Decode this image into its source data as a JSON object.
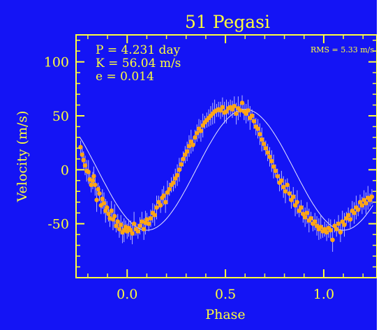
{
  "chart_data": {
    "type": "scatter",
    "title": "51 Pegasi",
    "xlabel": "Phase",
    "ylabel": "Velocity  (m/s)",
    "xlim": [
      -0.26,
      1.27
    ],
    "ylim": [
      -100,
      125
    ],
    "xticks": [
      0.0,
      0.5,
      1.0
    ],
    "xtick_labels": [
      "0.0",
      "0.5",
      "1.0"
    ],
    "yticks": [
      -50,
      0,
      50,
      100
    ],
    "ytick_labels": [
      "-50",
      "0",
      "50",
      "100"
    ],
    "annotations": {
      "period": "P = 4.231 day",
      "amplitude": "K = 56.04 m/s",
      "eccentricity": "e = 0.014",
      "rms": "RMS = 5.33 m/s"
    },
    "model": {
      "name": "Keplerian orbit fit",
      "period_days": 4.231,
      "K": 56.04,
      "e": 0.014,
      "peak_phase": 0.6,
      "phase_range": [
        -0.24,
        1.25
      ]
    },
    "series": [
      {
        "marker": "filled circle with error bar",
        "points": [
          [
            -0.237,
            21
          ],
          [
            -0.229,
            14
          ],
          [
            -0.222,
            9
          ],
          [
            -0.214,
            4
          ],
          [
            -0.206,
            -1
          ],
          [
            -0.197,
            -2
          ],
          [
            -0.19,
            -9
          ],
          [
            -0.183,
            -14
          ],
          [
            -0.175,
            -10
          ],
          [
            -0.17,
            -6
          ],
          [
            -0.163,
            -14
          ],
          [
            -0.155,
            -28
          ],
          [
            -0.148,
            -18
          ],
          [
            -0.141,
            -22
          ],
          [
            -0.133,
            -33
          ],
          [
            -0.126,
            -27
          ],
          [
            -0.118,
            -31
          ],
          [
            -0.11,
            -38
          ],
          [
            -0.103,
            -35
          ],
          [
            -0.095,
            -41
          ],
          [
            -0.088,
            -45
          ],
          [
            -0.08,
            -38
          ],
          [
            -0.072,
            -46
          ],
          [
            -0.064,
            -43
          ],
          [
            -0.056,
            -52
          ],
          [
            -0.048,
            -48
          ],
          [
            -0.04,
            -55
          ],
          [
            -0.032,
            -51
          ],
          [
            -0.024,
            -58
          ],
          [
            -0.016,
            -56
          ],
          [
            -0.008,
            -53
          ],
          [
            0.0,
            -57
          ],
          [
            0.008,
            -54
          ],
          [
            0.018,
            -56
          ],
          [
            0.026,
            -59
          ],
          [
            0.035,
            -50
          ],
          [
            0.045,
            -55
          ],
          [
            0.055,
            -57
          ],
          [
            0.065,
            -52
          ],
          [
            0.075,
            -48
          ],
          [
            0.085,
            -55
          ],
          [
            0.093,
            -49
          ],
          [
            0.1,
            -46
          ],
          [
            0.11,
            -50
          ],
          [
            0.12,
            -45
          ],
          [
            0.13,
            -40
          ],
          [
            0.14,
            -42
          ],
          [
            0.15,
            -35
          ],
          [
            0.16,
            -30
          ],
          [
            0.17,
            -33
          ],
          [
            0.178,
            -26
          ],
          [
            0.186,
            -24
          ],
          [
            0.195,
            -30
          ],
          [
            0.205,
            -21
          ],
          [
            0.215,
            -18
          ],
          [
            0.225,
            -14
          ],
          [
            0.235,
            -12
          ],
          [
            0.245,
            -8
          ],
          [
            0.255,
            -5
          ],
          [
            0.265,
            0
          ],
          [
            0.275,
            5
          ],
          [
            0.285,
            10
          ],
          [
            0.295,
            14
          ],
          [
            0.305,
            17
          ],
          [
            0.315,
            22
          ],
          [
            0.325,
            26
          ],
          [
            0.335,
            23
          ],
          [
            0.345,
            30
          ],
          [
            0.355,
            34
          ],
          [
            0.365,
            38
          ],
          [
            0.375,
            36
          ],
          [
            0.385,
            41
          ],
          [
            0.395,
            44
          ],
          [
            0.405,
            46
          ],
          [
            0.415,
            48
          ],
          [
            0.425,
            50
          ],
          [
            0.435,
            52
          ],
          [
            0.445,
            54
          ],
          [
            0.455,
            55
          ],
          [
            0.465,
            56
          ],
          [
            0.475,
            55
          ],
          [
            0.485,
            58
          ],
          [
            0.495,
            53
          ],
          [
            0.505,
            54
          ],
          [
            0.515,
            57
          ],
          [
            0.525,
            58
          ],
          [
            0.535,
            56
          ],
          [
            0.545,
            59
          ],
          [
            0.555,
            52
          ],
          [
            0.565,
            57
          ],
          [
            0.575,
            55
          ],
          [
            0.585,
            62
          ],
          [
            0.595,
            54
          ],
          [
            0.605,
            52
          ],
          [
            0.615,
            55
          ],
          [
            0.625,
            48
          ],
          [
            0.635,
            50
          ],
          [
            0.645,
            45
          ],
          [
            0.655,
            40
          ],
          [
            0.665,
            38
          ],
          [
            0.675,
            33
          ],
          [
            0.685,
            28
          ],
          [
            0.695,
            24
          ],
          [
            0.705,
            20
          ],
          [
            0.715,
            16
          ],
          [
            0.725,
            12
          ],
          [
            0.735,
            8
          ],
          [
            0.745,
            3
          ],
          [
            0.755,
            -1
          ],
          [
            0.765,
            -6
          ],
          [
            0.775,
            -12
          ],
          [
            0.785,
            -10
          ],
          [
            0.795,
            -16
          ],
          [
            0.805,
            -20
          ],
          [
            0.815,
            -14
          ],
          [
            0.825,
            -22
          ],
          [
            0.835,
            -28
          ],
          [
            0.845,
            -25
          ],
          [
            0.855,
            -33
          ],
          [
            0.865,
            -30
          ],
          [
            0.875,
            -38
          ],
          [
            0.885,
            -35
          ],
          [
            0.895,
            -41
          ],
          [
            0.905,
            -44
          ],
          [
            0.915,
            -40
          ],
          [
            0.925,
            -47
          ],
          [
            0.935,
            -45
          ],
          [
            0.945,
            -50
          ],
          [
            0.955,
            -48
          ],
          [
            0.965,
            -52
          ],
          [
            0.975,
            -55
          ],
          [
            0.985,
            -53
          ],
          [
            0.995,
            -57
          ],
          [
            1.005,
            -55
          ],
          [
            1.015,
            -58
          ],
          [
            1.025,
            -54
          ],
          [
            1.035,
            -56
          ],
          [
            1.045,
            -65
          ],
          [
            1.055,
            -52
          ],
          [
            1.065,
            -55
          ],
          [
            1.075,
            -50
          ],
          [
            1.085,
            -58
          ],
          [
            1.095,
            -48
          ],
          [
            1.105,
            -51
          ],
          [
            1.115,
            -45
          ],
          [
            1.125,
            -42
          ],
          [
            1.135,
            -46
          ],
          [
            1.145,
            -38
          ],
          [
            1.155,
            -40
          ],
          [
            1.165,
            -35
          ],
          [
            1.175,
            -37
          ],
          [
            1.185,
            -30
          ],
          [
            1.195,
            -33
          ],
          [
            1.205,
            -28
          ],
          [
            1.215,
            -31
          ],
          [
            1.225,
            -26
          ],
          [
            1.235,
            -28
          ],
          [
            1.245,
            -25
          ]
        ]
      }
    ]
  },
  "colors": {
    "background": "#1414f5",
    "frame_and_text": "#ffff3c",
    "points": "#ffa514",
    "error_bars": "#b8b8ff",
    "fit_line": "#e8e8ff"
  }
}
